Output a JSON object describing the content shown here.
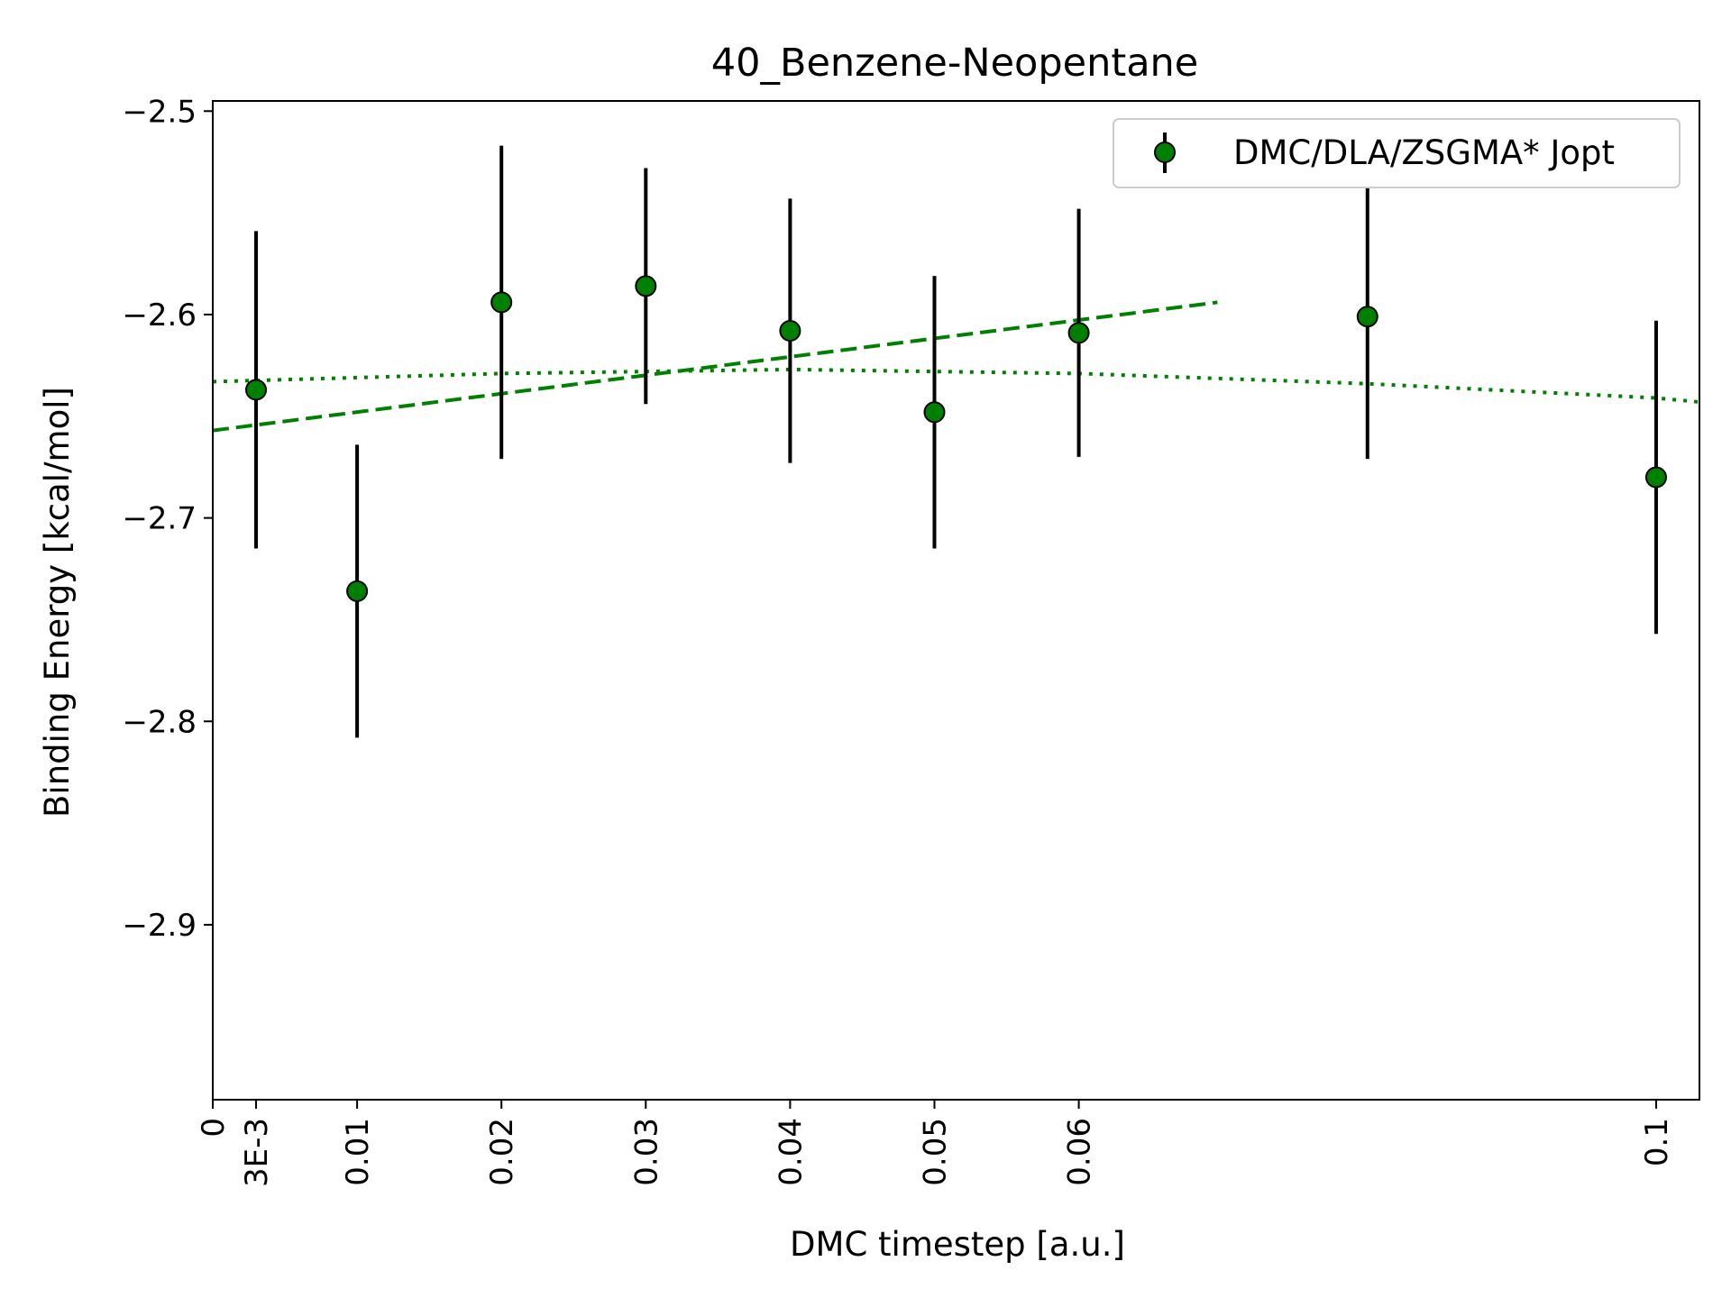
{
  "chart_data": {
    "type": "scatter",
    "title": "40_Benzene-Neopentane",
    "xlabel": "DMC timestep [a.u.]",
    "ylabel": "Binding Energy [kcal/mol]",
    "xlim": [
      0,
      0.103
    ],
    "ylim": [
      -2.986,
      -2.495
    ],
    "xticks": [
      0,
      0.003,
      0.01,
      0.02,
      0.03,
      0.04,
      0.05,
      0.06,
      0.1
    ],
    "xtick_labels": [
      "0",
      "3E-3",
      "0.01",
      "0.02",
      "0.03",
      "0.04",
      "0.05",
      "0.06",
      "0.1"
    ],
    "yticks": [
      -2.5,
      -2.6,
      -2.7,
      -2.8,
      -2.9
    ],
    "ytick_labels": [
      "−2.5",
      "−2.6",
      "−2.7",
      "−2.8",
      "−2.9"
    ],
    "legend_position": "top-right",
    "series": [
      {
        "name": "DMC/DLA/ZSGMA* Jopt",
        "color": "#008000",
        "x": [
          0.003,
          0.01,
          0.02,
          0.03,
          0.04,
          0.05,
          0.06,
          0.08,
          0.1
        ],
        "y": [
          -2.637,
          -2.736,
          -2.594,
          -2.586,
          -2.608,
          -2.648,
          -2.609,
          -2.601,
          -2.68
        ],
        "yerr": [
          0.078,
          0.072,
          0.077,
          0.058,
          0.065,
          0.067,
          0.061,
          0.07,
          0.077
        ]
      }
    ],
    "fits": [
      {
        "style": "dashed",
        "color": "#008000",
        "x": [
          0,
          0.0696
        ],
        "y": [
          -2.657,
          -2.594
        ]
      },
      {
        "style": "dotted",
        "color": "#008000",
        "x": [
          0,
          0.02,
          0.04,
          0.06,
          0.08,
          0.1,
          0.103
        ],
        "y": [
          -2.633,
          -2.629,
          -2.627,
          -2.629,
          -2.634,
          -2.641,
          -2.643
        ]
      }
    ]
  }
}
